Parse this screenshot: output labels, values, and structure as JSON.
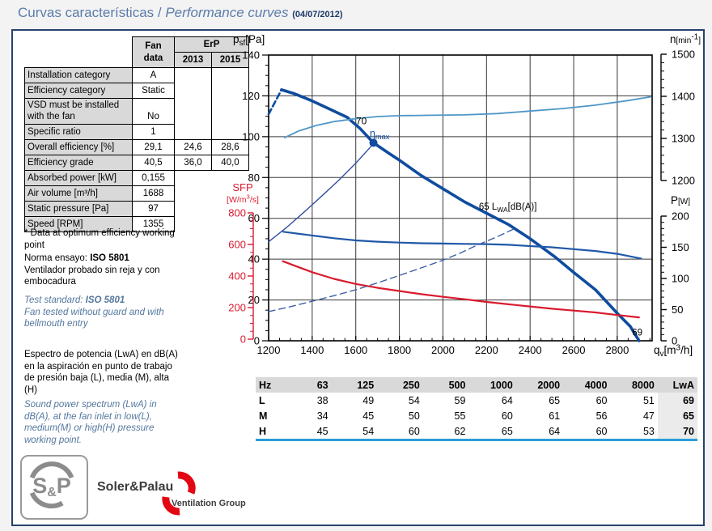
{
  "page": {
    "title_es": "Curvas características",
    "title_sep": " / ",
    "title_en": "Performance curves ",
    "date": "(04/07/2012)"
  },
  "fan_table": {
    "headers": {
      "fan_data": "Fan data",
      "erp": "ErP",
      "y2013": "2013",
      "y2015": "2015"
    },
    "rows": [
      {
        "label": "Installation category",
        "fan": "A"
      },
      {
        "label": "Efficiency category",
        "fan": "Static"
      },
      {
        "label": "VSD must be installed with the fan",
        "fan": "No"
      },
      {
        "label": "Specific ratio",
        "fan": "1"
      },
      {
        "label": "Overall efficiency [%]",
        "fan": "29,1",
        "e13": "24,6",
        "e15": "28,6"
      },
      {
        "label": "Efficiency grade",
        "fan": "40,5",
        "e13": "36,0",
        "e15": "40,0"
      },
      {
        "label": "Absorbed power [kW]",
        "fan": "0,155"
      },
      {
        "label": "Air volume [m³/h]",
        "fan": "1688"
      },
      {
        "label": "Static pressure [Pa]",
        "fan": "97"
      },
      {
        "label": "Speed [RPM]",
        "fan": "1355"
      }
    ]
  },
  "notes": {
    "optimum": "* Data at optimum efficiency working point",
    "norma_prefix": "Norma ensayo: ",
    "norma_bold": "ISO 5801",
    "norma_rest": "Ventilador probado sin reja y con embocadura",
    "test_prefix": "Test standard: ",
    "test_bold": "ISO 5801",
    "test_rest": "Fan tested without guard and with bellmouth entry",
    "espectro": "Espectro de potencia (LwA) en dB(A) en la aspiración en punto de trabajo de presión baja (L), media (M), alta (H)",
    "sound": "Sound power spectrum (LwA) in dB(A), at the fan inlet in low(L), medium(M) or high(H) pressure working point."
  },
  "chart_data": {
    "type": "line",
    "x_axis": {
      "label": "qv[m³/h]",
      "title_parts": [
        {
          "t": "q"
        },
        {
          "t": "v",
          "sub": true
        },
        {
          "t": "[m"
        },
        {
          "t": "3",
          "sup": true
        },
        {
          "t": "/h]"
        }
      ],
      "min": 1200,
      "max": 2960,
      "major_step": 200,
      "minor_step": 50,
      "ticks": [
        1200,
        1400,
        1600,
        1800,
        2000,
        2200,
        2400,
        2600,
        2800
      ]
    },
    "axes": {
      "pressure": {
        "label": "psf[Pa]",
        "title_parts": [
          {
            "t": "p"
          },
          {
            "t": "sf",
            "sub": true
          },
          {
            "t": "[Pa]"
          }
        ],
        "min": 0,
        "max": 140,
        "minor_step": 5,
        "ticks": [
          0,
          20,
          40,
          60,
          80,
          100,
          120,
          140
        ]
      },
      "speed": {
        "label": "n[min-1]",
        "title_parts": [
          {
            "t": "n"
          },
          {
            "t": "[min",
            "sub": false,
            "small": true
          },
          {
            "t": "-1",
            "sup": true
          },
          {
            "t": "]",
            "small": true
          }
        ],
        "min": 1200,
        "max": 1500,
        "minor_step": 20,
        "ticks": [
          1200,
          1300,
          1400,
          1500
        ]
      },
      "power": {
        "label": "P[W]",
        "title_parts": [
          {
            "t": "P"
          },
          {
            "t": "[W]",
            "small": true
          }
        ],
        "min": 0,
        "max": 200,
        "minor_step": 10,
        "ticks": [
          0,
          50,
          100,
          150,
          200
        ]
      },
      "sfp": {
        "label": "SFP",
        "unit_parts": [
          {
            "t": "[W/m"
          },
          {
            "t": "3",
            "sup": true
          },
          {
            "t": "/s]"
          }
        ],
        "min": 0,
        "max": 800,
        "minor_step": 50,
        "ticks": [
          0,
          200,
          400,
          600,
          800
        ]
      }
    },
    "series": [
      {
        "name": "static-pressure-unstable",
        "axis": "pressure",
        "color": "#0f4c9f",
        "width": 2.6,
        "dash": "7,4",
        "points": [
          [
            1200,
            111
          ],
          [
            1259,
            123
          ]
        ]
      },
      {
        "name": "static-pressure",
        "axis": "pressure",
        "color": "#0f4c9f",
        "width": 3.6,
        "points": [
          [
            1259,
            123
          ],
          [
            1320,
            121
          ],
          [
            1400,
            117.5
          ],
          [
            1480,
            113.5
          ],
          [
            1560,
            109.5
          ],
          [
            1620,
            104
          ],
          [
            1681,
            97
          ],
          [
            1750,
            92
          ],
          [
            1800,
            88.5
          ],
          [
            1900,
            81
          ],
          [
            2000,
            74.5
          ],
          [
            2100,
            68
          ],
          [
            2200,
            62.5
          ],
          [
            2300,
            57
          ],
          [
            2400,
            50
          ],
          [
            2515,
            41
          ],
          [
            2600,
            33.5
          ],
          [
            2700,
            25
          ],
          [
            2800,
            13.5
          ],
          [
            2860,
            7
          ],
          [
            2900,
            0
          ]
        ]
      },
      {
        "name": "efficiency",
        "axis": "pressure",
        "color": "#32509f",
        "width": 1.4,
        "points": [
          [
            1200,
            48.5
          ],
          [
            1280,
            55.3
          ],
          [
            1360,
            62.8
          ],
          [
            1440,
            70.5
          ],
          [
            1520,
            78.5
          ],
          [
            1600,
            87
          ],
          [
            1681,
            96.5
          ]
        ]
      },
      {
        "name": "speed-rpm",
        "axis": "speed",
        "color": "#4e96c8",
        "width": 1.8,
        "points": [
          [
            1274,
            1302
          ],
          [
            1340,
            1318
          ],
          [
            1420,
            1331
          ],
          [
            1500,
            1340
          ],
          [
            1600,
            1347
          ],
          [
            1700,
            1352
          ],
          [
            1800,
            1354
          ],
          [
            1950,
            1355
          ],
          [
            2100,
            1356
          ],
          [
            2250,
            1359
          ],
          [
            2400,
            1365
          ],
          [
            2550,
            1371
          ],
          [
            2700,
            1379
          ],
          [
            2850,
            1390
          ],
          [
            2955,
            1399
          ]
        ]
      },
      {
        "name": "absorbed-power",
        "axis": "power",
        "color": "#2059a8",
        "width": 2.2,
        "points": [
          [
            1267,
            175
          ],
          [
            1340,
            171.5
          ],
          [
            1420,
            168
          ],
          [
            1500,
            164.5
          ],
          [
            1600,
            161
          ],
          [
            1700,
            159
          ],
          [
            1800,
            157.5
          ],
          [
            1900,
            156.5
          ],
          [
            2000,
            156
          ],
          [
            2100,
            155.5
          ],
          [
            2200,
            155
          ],
          [
            2300,
            154
          ],
          [
            2400,
            152
          ],
          [
            2500,
            150
          ],
          [
            2600,
            147
          ],
          [
            2700,
            144
          ],
          [
            2800,
            139.5
          ],
          [
            2910,
            132
          ]
        ]
      },
      {
        "name": "sfp",
        "axis": "sfp",
        "color": "#d91b2e",
        "width": 2.2,
        "points": [
          [
            1265,
            494
          ],
          [
            1340,
            455
          ],
          [
            1400,
            424
          ],
          [
            1500,
            382
          ],
          [
            1600,
            350
          ],
          [
            1700,
            325
          ],
          [
            1800,
            305
          ],
          [
            1900,
            285
          ],
          [
            2000,
            268
          ],
          [
            2100,
            253
          ],
          [
            2200,
            236
          ],
          [
            2300,
            221
          ],
          [
            2400,
            207
          ],
          [
            2500,
            193
          ],
          [
            2600,
            181
          ],
          [
            2700,
            169
          ],
          [
            2800,
            153
          ],
          [
            2900,
            138
          ]
        ]
      },
      {
        "name": "lwa-dashed",
        "axis": "pressure",
        "color": "#3d5fa8",
        "width": 1.4,
        "dash": "8,5",
        "points": [
          [
            1200,
            14.3
          ],
          [
            1300,
            16.7
          ],
          [
            1400,
            19.4
          ],
          [
            1500,
            22.1
          ],
          [
            1600,
            25
          ],
          [
            1700,
            28.4
          ],
          [
            1800,
            32
          ],
          [
            1900,
            35.7
          ],
          [
            2000,
            39.5
          ],
          [
            2080,
            43
          ],
          [
            2160,
            47
          ],
          [
            2250,
            51
          ],
          [
            2330,
            55
          ]
        ]
      }
    ],
    "operating_point": {
      "q": 1681,
      "p": 97,
      "color": "#0f4c9f",
      "r": 5
    },
    "annotations": [
      {
        "name": "lwa-high-value",
        "parts": [
          {
            "t": "70"
          }
        ],
        "q": 1601,
        "p": 106,
        "color": "#000000",
        "size": 12
      },
      {
        "name": "eta-max",
        "parts": [
          {
            "t": "η"
          },
          {
            "t": "max",
            "sub": true
          }
        ],
        "q": 1664,
        "p": 100,
        "color": "#1450a0",
        "size": 12.5
      },
      {
        "name": "lwa-medium-label",
        "parts": [
          {
            "t": "65 L"
          },
          {
            "t": "WA",
            "sub": true
          },
          {
            "t": "[dB(A)]"
          }
        ],
        "q": 2165,
        "p": 64.2,
        "color": "#000000",
        "size": 11.5
      },
      {
        "name": "lwa-low-value",
        "parts": [
          {
            "t": "69"
          }
        ],
        "q": 2868,
        "p": 2.5,
        "color": "#000000",
        "size": 11.5
      }
    ],
    "grid": true,
    "colors": {
      "grid": "#3a3a3a",
      "border": "#000000",
      "sfp_axis": "#d91b2e"
    }
  },
  "spectrum_table": {
    "header": [
      "Hz",
      "63",
      "125",
      "250",
      "500",
      "1000",
      "2000",
      "4000",
      "8000",
      "LwA"
    ],
    "rows": [
      {
        "band": "L",
        "values": [
          "38",
          "49",
          "54",
          "59",
          "64",
          "65",
          "60",
          "51"
        ],
        "lwa": "69"
      },
      {
        "band": "M",
        "values": [
          "34",
          "45",
          "50",
          "55",
          "60",
          "61",
          "56",
          "47"
        ],
        "lwa": "65"
      },
      {
        "band": "H",
        "values": [
          "45",
          "54",
          "60",
          "62",
          "65",
          "64",
          "60",
          "53"
        ],
        "lwa": "70"
      }
    ]
  },
  "footer": {
    "logo_text": "S&P",
    "brand": "Soler&Palau",
    "group": "Ventilation Group"
  }
}
